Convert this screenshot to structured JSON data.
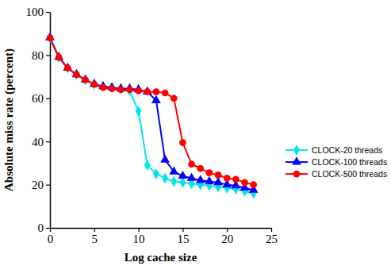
{
  "chart_data": {
    "type": "line",
    "x_label": "Log cache size",
    "y_label": "Absolute miss rate (percent)",
    "x": [
      0,
      1,
      2,
      3,
      4,
      5,
      6,
      7,
      8,
      9,
      10,
      11,
      12,
      13,
      14,
      15,
      16,
      17,
      18,
      19,
      20,
      21,
      22,
      23
    ],
    "series": [
      {
        "name": "CLOCK-20 threads",
        "color": "#00e5ee",
        "marker": "diamond",
        "values": [
          88,
          79,
          74,
          71,
          68.5,
          66.5,
          65.5,
          65,
          64.5,
          63.5,
          54,
          29,
          25,
          23,
          21.5,
          21,
          20.5,
          20,
          19.5,
          19,
          18.5,
          18,
          17,
          16
        ]
      },
      {
        "name": "CLOCK-100 threads",
        "color": "#0000ff",
        "marker": "triangle",
        "values": [
          88,
          79,
          74,
          71,
          68.5,
          66.5,
          65.5,
          65,
          64.5,
          64.5,
          64,
          63,
          59,
          31.5,
          26,
          24,
          23,
          22,
          21.5,
          21,
          20,
          19.5,
          18.5,
          17.5
        ]
      },
      {
        "name": "CLOCK-500 threads",
        "color": "#ff0000",
        "marker": "circle",
        "values": [
          88,
          79,
          74,
          71,
          68.5,
          66.5,
          65,
          64.5,
          64,
          64,
          63.5,
          63,
          63,
          62.5,
          60,
          39.5,
          29.5,
          27.5,
          25.5,
          24.5,
          23,
          22.5,
          21,
          20
        ]
      }
    ],
    "xlim": [
      0,
      25
    ],
    "xticks": [
      0,
      5,
      10,
      15,
      20,
      25
    ],
    "ylim": [
      0,
      100
    ],
    "yticks": [
      0,
      20,
      40,
      60,
      80,
      100
    ],
    "legend": "right",
    "grid": false
  }
}
